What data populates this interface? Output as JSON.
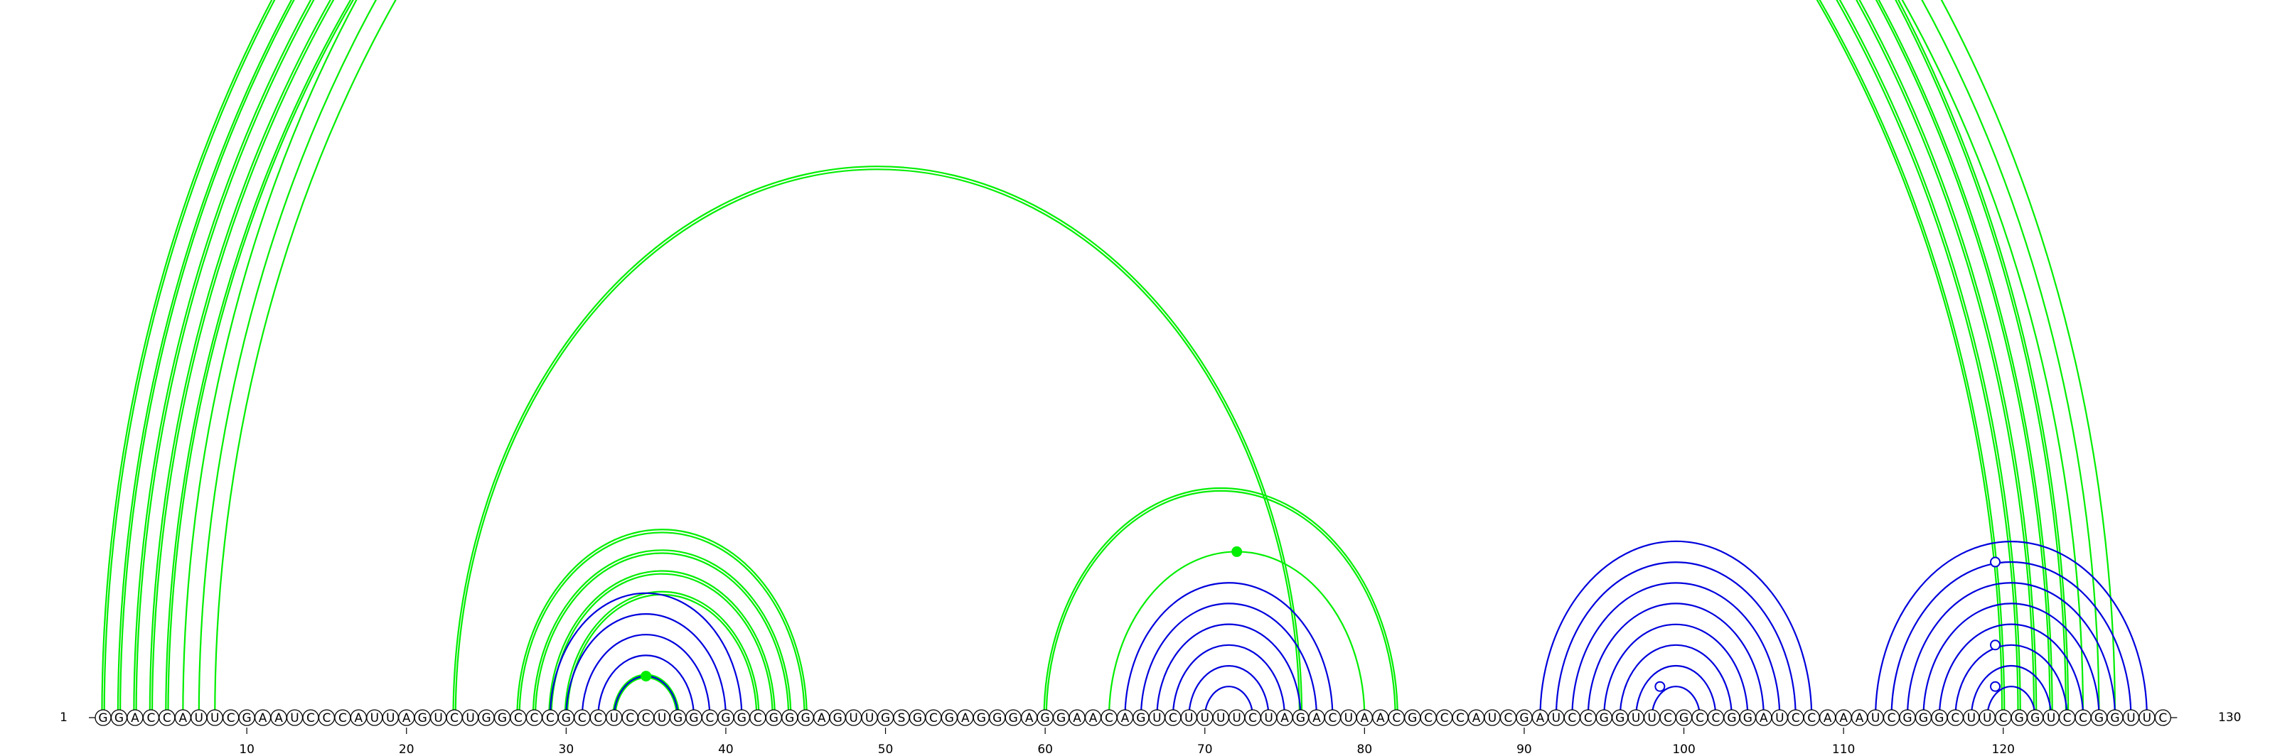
{
  "sequence": "GGACCAUUCGAAUCCCAUUAGUCUGGCCCGCCUCCUGGCGGCGGGAGUUGSGCGAGGGAGGAACAGUCUUUUCUAGACUAACGCCCAUCGAUCCGGUUCGCCGGAUCCAAAUCGGGCUUCGGUCCGGUUC",
  "start_label": "1",
  "end_label": "130",
  "tick_labels": [
    "10",
    "20",
    "30",
    "40",
    "50",
    "60",
    "70",
    "80",
    "90",
    "100",
    "110",
    "120"
  ],
  "colors": {
    "green": "#00ee00",
    "blue": "#0000dd",
    "backbone": "#000000"
  },
  "arcs": {
    "green": [
      [
        1,
        124,
        2
      ],
      [
        2,
        123,
        2
      ],
      [
        3,
        122,
        2
      ],
      [
        4,
        121,
        2
      ],
      [
        5,
        120,
        2
      ],
      [
        6,
        127,
        1
      ],
      [
        7,
        126,
        1
      ],
      [
        8,
        125,
        1
      ],
      [
        23,
        76,
        2
      ],
      [
        27,
        45,
        2
      ],
      [
        28,
        44,
        2
      ],
      [
        29,
        43,
        2
      ],
      [
        30,
        42,
        2
      ],
      [
        33,
        37,
        2
      ],
      [
        60,
        82,
        2
      ],
      [
        64,
        80,
        1
      ]
    ],
    "blue": [
      [
        29,
        41,
        1
      ],
      [
        30,
        40,
        1
      ],
      [
        31,
        39,
        1
      ],
      [
        32,
        38,
        1
      ],
      [
        33,
        37,
        1
      ],
      [
        65,
        78,
        1
      ],
      [
        66,
        77,
        1
      ],
      [
        67,
        76,
        1
      ],
      [
        68,
        75,
        1
      ],
      [
        69,
        74,
        1
      ],
      [
        70,
        73,
        1
      ],
      [
        91,
        108,
        1
      ],
      [
        92,
        107,
        1
      ],
      [
        93,
        106,
        1
      ],
      [
        94,
        105,
        1
      ],
      [
        95,
        104,
        1
      ],
      [
        96,
        103,
        1
      ],
      [
        97,
        102,
        1
      ],
      [
        98,
        101,
        1
      ],
      [
        112,
        129,
        1
      ],
      [
        113,
        128,
        1
      ],
      [
        114,
        127,
        1
      ],
      [
        115,
        126,
        1
      ],
      [
        116,
        125,
        1
      ],
      [
        117,
        124,
        1
      ],
      [
        118,
        123,
        1
      ],
      [
        119,
        122,
        1
      ]
    ]
  },
  "markers": [
    {
      "pos": 65.5,
      "arc_span": [
        6,
        125
      ],
      "color": "green",
      "filled": false
    },
    {
      "pos": 72.0,
      "arc_span": [
        64,
        80
      ],
      "color": "green",
      "filled": true
    },
    {
      "pos": 35.0,
      "arc_span": [
        33,
        37
      ],
      "color": "green",
      "filled": true
    },
    {
      "pos": 98.5,
      "arc_span": [
        97,
        100
      ],
      "color": "blue",
      "filled": false
    },
    {
      "pos": 119.5,
      "arc_span": [
        112,
        127
      ],
      "color": "blue",
      "filled": false
    },
    {
      "pos": 119.5,
      "arc_span": [
        116,
        123
      ],
      "color": "blue",
      "filled": false
    },
    {
      "pos": 119.5,
      "arc_span": [
        118,
        121
      ],
      "color": "blue",
      "filled": false
    }
  ]
}
